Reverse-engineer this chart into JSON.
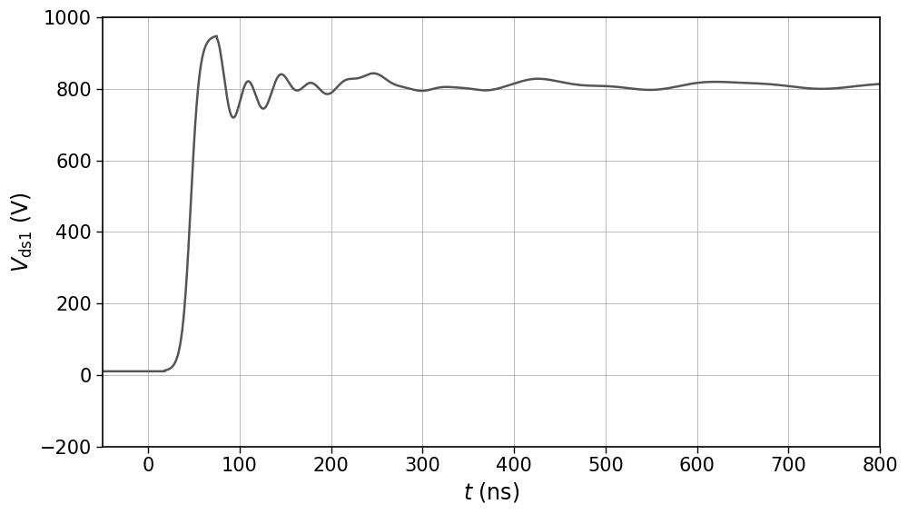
{
  "xlim": [
    -50,
    800
  ],
  "ylim": [
    -200,
    1000
  ],
  "xticks": [
    0,
    100,
    200,
    300,
    400,
    500,
    600,
    700,
    800
  ],
  "yticks": [
    -200,
    0,
    200,
    400,
    600,
    800,
    1000
  ],
  "xlabel": "$t$ (ns)",
  "ylabel": "$V_{\\mathrm{ds1}}$ (V)",
  "line_color": "#555555",
  "line_width": 1.8,
  "background_color": "#ffffff",
  "grid_color": "#b0b0b0",
  "grid_linewidth": 0.6,
  "steady_state": 810,
  "peak_voltage": 950
}
